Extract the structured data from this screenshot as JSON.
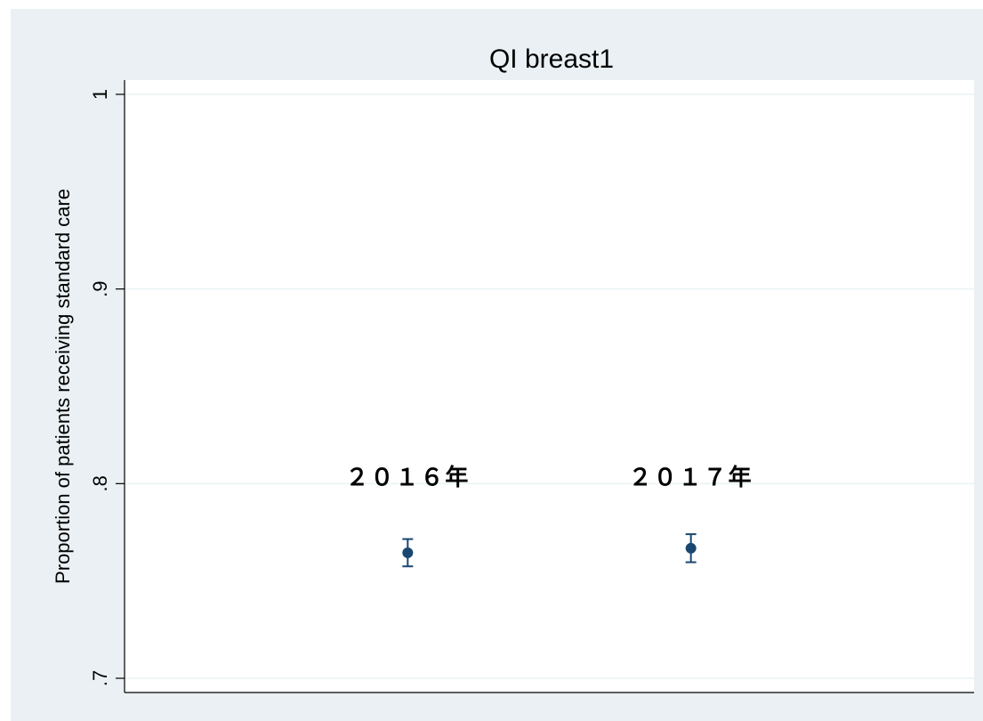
{
  "chart_data": {
    "type": "errorbar",
    "title": "QI breast1",
    "y_label": "Proportion of patients receiving standard care",
    "categories": [
      "２０１６年",
      "２０１７年"
    ],
    "series": [
      {
        "color": "#1a476f",
        "values": [
          0.7645,
          0.7668
        ],
        "errors": [
          0.007,
          0.0072
        ]
      }
    ],
    "ylim": [
      0.7,
      1
    ],
    "yticks": [
      {
        "value": 0.7,
        "label": ".7"
      },
      {
        "value": 0.8,
        "label": ".8"
      },
      {
        "value": 0.9,
        "label": ".9"
      },
      1
    ],
    "grid": true
  }
}
